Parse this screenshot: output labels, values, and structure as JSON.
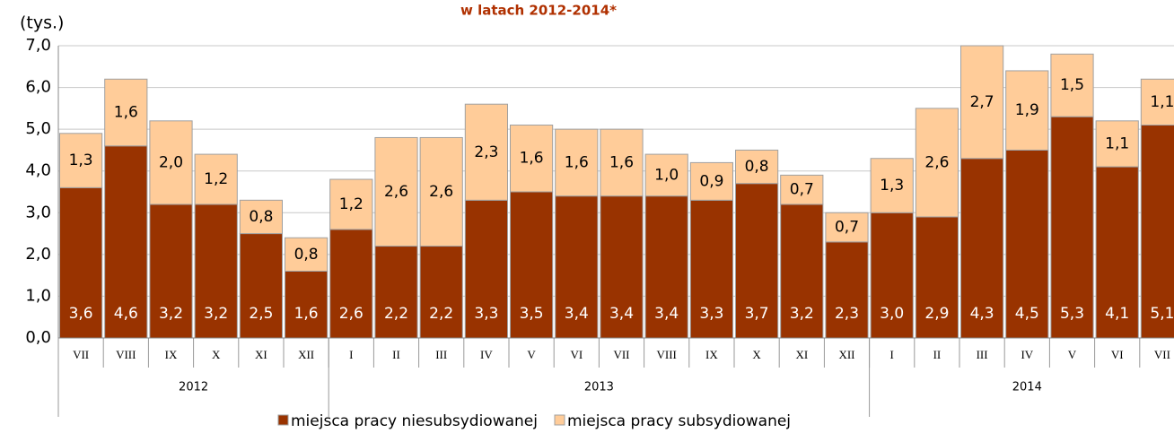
{
  "chart_data": {
    "type": "stacked_bar",
    "title": "w latach 2012-2014*",
    "y_label": "(tys.)",
    "categories": [
      "VII",
      "VIII",
      "IX",
      "X",
      "XI",
      "XII",
      "I",
      "II",
      "III",
      "IV",
      "V",
      "VI",
      "VII",
      "VIII",
      "IX",
      "X",
      "XI",
      "XII",
      "I",
      "II",
      "III",
      "IV",
      "V",
      "VI",
      "VII"
    ],
    "groups": [
      {
        "label": "2012",
        "count": 6
      },
      {
        "label": "2013",
        "count": 12
      },
      {
        "label": "2014",
        "count": 7
      }
    ],
    "series": [
      {
        "name": "miejsca pracy niesubsydiowanej",
        "color": "#993300",
        "values": [
          3.6,
          4.6,
          3.2,
          3.2,
          2.5,
          1.6,
          2.6,
          2.2,
          2.2,
          3.3,
          3.5,
          3.4,
          3.4,
          3.4,
          3.3,
          3.7,
          3.2,
          2.3,
          3.0,
          2.9,
          4.3,
          4.5,
          5.3,
          4.1,
          5.1
        ],
        "value_labels": [
          "3,6",
          "4,6",
          "3,2",
          "3,2",
          "2,5",
          "1,6",
          "2,6",
          "2,2",
          "2,2",
          "3,3",
          "3,5",
          "3,4",
          "3,4",
          "3,4",
          "3,3",
          "3,7",
          "3,2",
          "2,3",
          "3,0",
          "2,9",
          "4,3",
          "4,5",
          "5,3",
          "4,1",
          "5,1"
        ]
      },
      {
        "name": "miejsca pracy subsydiowanej",
        "color": "#ffcc99",
        "values": [
          1.3,
          1.6,
          2.0,
          1.2,
          0.8,
          0.8,
          1.2,
          2.6,
          2.6,
          2.3,
          1.6,
          1.6,
          1.6,
          1.0,
          0.9,
          0.8,
          0.7,
          0.7,
          1.3,
          2.6,
          2.7,
          1.9,
          1.5,
          1.1,
          1.1
        ],
        "value_labels": [
          "1,3",
          "1,6",
          "2,0",
          "1,2",
          "0,8",
          "0,8",
          "1,2",
          "2,6",
          "2,6",
          "2,3",
          "1,6",
          "1,6",
          "1,6",
          "1,0",
          "0,9",
          "0,8",
          "0,7",
          "0,7",
          "1,3",
          "2,6",
          "2,7",
          "1,9",
          "1,5",
          "1,1",
          "1,1"
        ]
      }
    ],
    "ylim": [
      0,
      7
    ],
    "yticks": [
      {
        "value": 0,
        "label": "0,0"
      },
      {
        "value": 1,
        "label": "1,0"
      },
      {
        "value": 2,
        "label": "2,0"
      },
      {
        "value": 3,
        "label": "3,0"
      },
      {
        "value": 4,
        "label": "4,0"
      },
      {
        "value": 5,
        "label": "5,0"
      },
      {
        "value": 6,
        "label": "6,0"
      },
      {
        "value": 7,
        "label": "7,0"
      }
    ],
    "grid": true
  }
}
